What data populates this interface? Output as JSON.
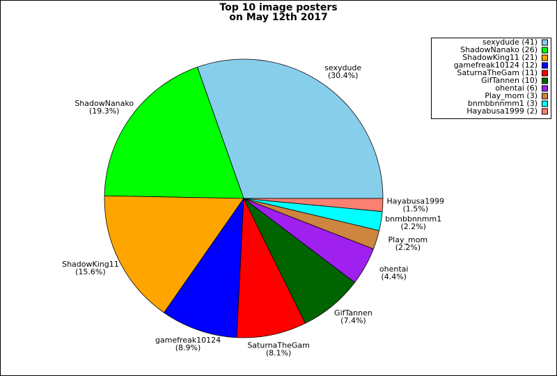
{
  "chart_data": {
    "type": "pie",
    "title": [
      "Top 10 image posters",
      "on May 12th 2017"
    ],
    "categories": [
      "sexydude",
      "ShadowNanako",
      "ShadowKing11",
      "gamefreak10124",
      "SaturnaTheGam",
      "GifTannen",
      "ohentai",
      "Play_mom",
      "bnmbbnnmm1",
      "Hayabusa1999"
    ],
    "values": [
      30.4,
      19.3,
      15.6,
      8.9,
      8.1,
      7.4,
      4.4,
      2.2,
      2.2,
      1.5
    ],
    "value_labels": [
      "(30.4%)",
      "(19.3%)",
      "(15.6%)",
      "(8.9%)",
      "(8.1%)",
      "(7.4%)",
      "(4.4%)",
      "(2.2%)",
      "(2.2%)",
      "(1.5%)"
    ],
    "legend_labels": [
      "sexydude (41)",
      "ShadowNanako (26)",
      "ShadowKing11 (21)",
      "gamefreak10124 (12)",
      "SaturnaTheGam (11)",
      "GifTannen (10)",
      "ohentai (6)",
      "Play_mom (3)",
      "bnmbbnnmm1 (3)",
      "Hayabusa1999 (2)"
    ],
    "colors": [
      "#87ceeb",
      "#00ff00",
      "#ffa500",
      "#0000ff",
      "#ff0000",
      "#006400",
      "#a020f0",
      "#cd853f",
      "#00ffff",
      "#fa8072"
    ],
    "legend": "top-right"
  }
}
